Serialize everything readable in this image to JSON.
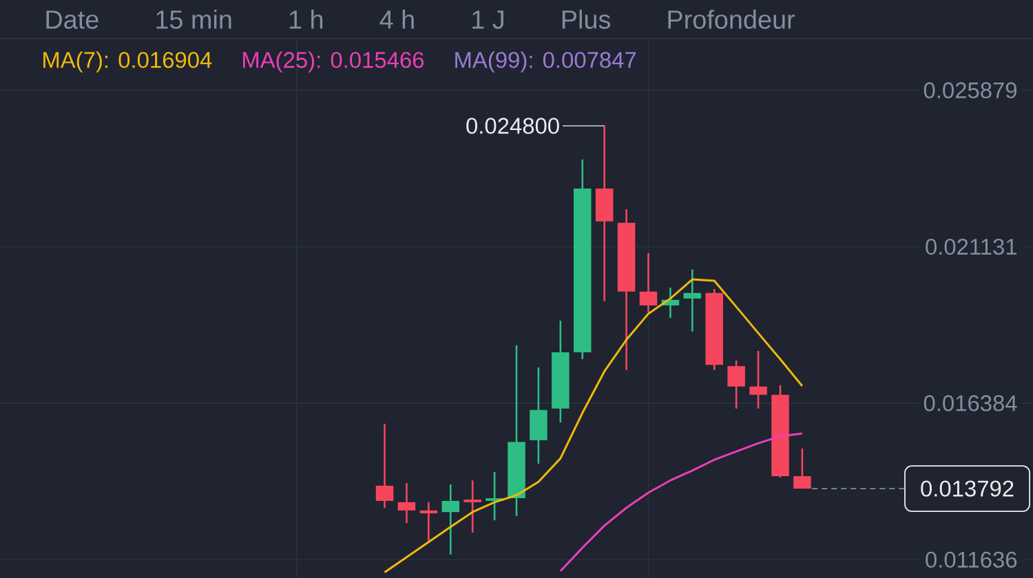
{
  "chart_data": {
    "type": "candlestick",
    "categories": [
      null,
      null,
      null,
      null,
      null,
      null,
      null,
      null,
      null,
      null,
      null,
      null,
      null,
      null,
      null,
      null,
      null,
      null,
      null,
      null,
      null,
      null,
      null,
      null,
      null,
      null,
      null,
      null,
      null,
      null,
      null,
      null,
      null,
      null,
      null,
      null,
      null,
      null,
      null,
      null,
      null,
      null,
      null,
      null,
      null,
      null,
      null
    ],
    "ohlc": [
      null,
      null,
      null,
      null,
      null,
      null,
      null,
      null,
      null,
      null,
      null,
      null,
      null,
      null,
      null,
      null,
      null,
      [
        0.01388,
        0.01576,
        0.01321,
        0.01342
      ],
      [
        0.01338,
        0.01396,
        0.01275,
        0.01313
      ],
      [
        0.01313,
        0.01338,
        0.01221,
        0.01304
      ],
      [
        0.01308,
        0.01392,
        0.01179,
        0.01342
      ],
      [
        0.01346,
        0.01404,
        0.01246,
        0.01338
      ],
      [
        0.01342,
        0.0143,
        0.01283,
        0.0135
      ],
      [
        0.0135,
        0.01814,
        0.01296,
        0.01521
      ],
      [
        0.01526,
        0.01747,
        0.01455,
        0.01618
      ],
      [
        0.01622,
        0.01889,
        0.0158,
        0.01793
      ],
      [
        0.01793,
        0.02378,
        0.01772,
        0.0229
      ],
      [
        0.0229,
        0.0248,
        0.01948,
        0.0219
      ],
      [
        0.02186,
        0.02227,
        0.01739,
        0.01977
      ],
      [
        0.01977,
        0.02094,
        0.01914,
        0.01935
      ],
      [
        0.01935,
        0.01989,
        0.01897,
        0.01952
      ],
      [
        0.01956,
        0.02044,
        0.01856,
        0.01973
      ],
      [
        0.01973,
        0.01985,
        0.01739,
        0.01755
      ],
      [
        0.01751,
        0.01768,
        0.01622,
        0.01689
      ],
      [
        0.01689,
        0.01797,
        0.01622,
        0.01664
      ],
      [
        0.01664,
        0.01693,
        0.01413,
        0.01417
      ],
      [
        0.01417,
        0.01501,
        0.013792,
        0.013792
      ],
      null,
      null,
      null,
      null,
      null,
      null,
      null,
      null,
      null,
      null
    ],
    "colors": [
      null,
      null,
      null,
      null,
      null,
      null,
      null,
      null,
      null,
      null,
      null,
      null,
      null,
      null,
      null,
      null,
      null,
      "#f6465d",
      "#f6465d",
      "#f6465d",
      "#2ebd85",
      "#f6465d",
      "#2ebd85",
      "#2ebd85",
      "#2ebd85",
      "#2ebd85",
      "#2ebd85",
      "#f6465d",
      "#f6465d",
      "#f6465d",
      "#2ebd85",
      "#2ebd85",
      "#f6465d",
      "#f6465d",
      "#f6465d",
      "#f6465d",
      "#f6465d",
      null,
      null,
      null,
      null,
      null,
      null,
      null,
      null,
      null,
      null
    ],
    "series": [
      {
        "name": "MA(7): 0.016904",
        "type": "line",
        "color": "#f0b90b",
        "values": [
          null,
          null,
          null,
          null,
          null,
          null,
          null,
          null,
          null,
          null,
          null,
          null,
          null,
          null,
          null,
          null,
          null,
          0.01125,
          0.01171,
          0.01217,
          0.01263,
          0.01308,
          0.01338,
          0.01359,
          0.014,
          0.01471,
          0.01609,
          0.01735,
          0.01831,
          0.0191,
          0.01956,
          0.02014,
          0.0201,
          0.01931,
          0.01851,
          0.01772,
          0.016904,
          null,
          null,
          null,
          null,
          null,
          null,
          null,
          null,
          null,
          null
        ]
      },
      {
        "name": "MA(25): 0.015466",
        "type": "line",
        "color": "#eb40b5",
        "values": [
          null,
          null,
          null,
          null,
          null,
          null,
          null,
          null,
          null,
          null,
          null,
          null,
          null,
          null,
          null,
          null,
          null,
          null,
          null,
          null,
          null,
          null,
          null,
          null,
          null,
          0.01129,
          0.012,
          0.01267,
          0.01321,
          0.01367,
          0.01404,
          0.01434,
          0.01467,
          0.01492,
          0.01517,
          0.01538,
          0.015466,
          null,
          null,
          null,
          null,
          null,
          null,
          null,
          null,
          null,
          null
        ]
      },
      {
        "name": "MA(99): 0.007847",
        "type": "line",
        "color": "#9b7bd4",
        "values": [
          null,
          null,
          null,
          null,
          null,
          null,
          null,
          null,
          null,
          null,
          null,
          null,
          null,
          null,
          null,
          null,
          null,
          null,
          null,
          null,
          null,
          null,
          null,
          null,
          null,
          null,
          null,
          null,
          null,
          null,
          null,
          null,
          null,
          null,
          null,
          null,
          null,
          null,
          null,
          null,
          null,
          null,
          null,
          null,
          null,
          null,
          null
        ]
      }
    ],
    "ylim": [
      0.01108,
      0.02745
    ],
    "yticks": [
      0.011636,
      0.016384,
      0.021131,
      0.025879
    ],
    "grid": true,
    "legend": "top left",
    "marker": "none",
    "ref_lines": [
      {
        "axis": "y",
        "value": 0.013792,
        "label": "0.013792",
        "line_style": "dashed",
        "color": "#848e9c"
      }
    ],
    "annotations": [
      "Date",
      "15 min",
      "1 h",
      "4 h",
      "1 J",
      "Plus",
      "Profondeur",
      "0.024800"
    ]
  }
}
